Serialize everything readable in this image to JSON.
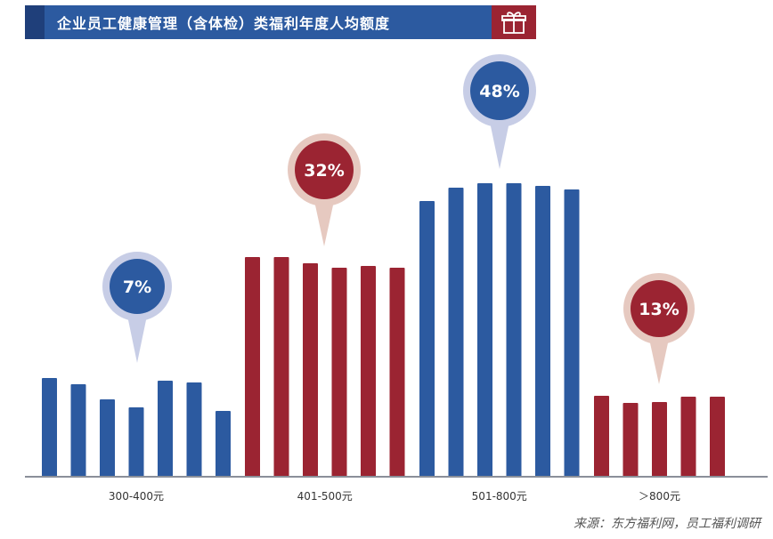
{
  "header": {
    "title": "企业员工健康管理（含体检）类福利年度人均额度",
    "icon": "gift-icon"
  },
  "colors": {
    "blue": "#2c5aa0",
    "red": "#9b2432",
    "blue_ring": "#c7cde6",
    "red_ring": "#e6c9c0",
    "axis": "#8a8f99"
  },
  "chart_data": {
    "type": "bar",
    "categories": [
      "300-400元",
      "401-500元",
      "501-800元",
      "＞800元"
    ],
    "values": [
      7,
      32,
      48,
      13
    ],
    "value_labels": [
      "7%",
      "32%",
      "48%",
      "13%"
    ],
    "unit": "%",
    "grid": false,
    "legend": "none"
  },
  "footer": {
    "source": "来源：东方福利网，员工福利调研"
  }
}
